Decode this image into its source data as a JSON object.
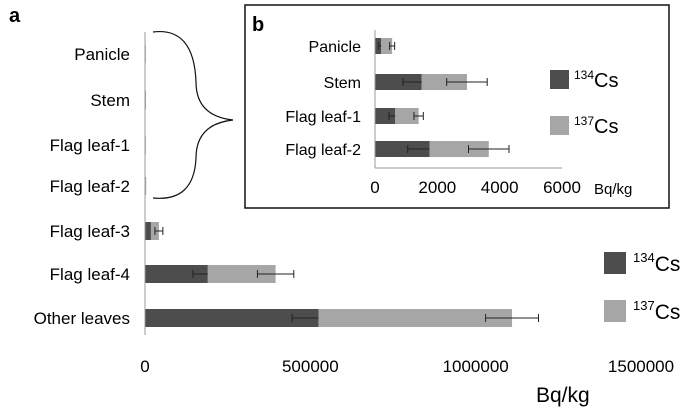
{
  "chart_data": [
    {
      "panel": "a",
      "type": "bar",
      "stacked": true,
      "orientation": "horizontal",
      "categories": [
        "Panicle",
        "Stem",
        "Flag leaf-1",
        "Flag leaf-2",
        "Flag leaf-3",
        "Flag leaf-4",
        "Other leaves"
      ],
      "series": [
        {
          "name": "134Cs",
          "label_mass": "134",
          "label_symbol": "Cs",
          "color": "#4d4d4d",
          "values": [
            500,
            1300,
            600,
            1600,
            18000,
            190000,
            525000
          ],
          "errors": [
            null,
            null,
            null,
            null,
            null,
            45000,
            80000
          ]
        },
        {
          "name": "137Cs",
          "label_mass": "137",
          "label_symbol": "Cs",
          "color": "#a6a6a6",
          "values": [
            550,
            1700,
            700,
            2100,
            24000,
            205000,
            585000
          ],
          "errors": [
            null,
            null,
            null,
            null,
            12000,
            55000,
            80000
          ]
        }
      ],
      "xlim": [
        0,
        1500000
      ],
      "xticks": [
        "0",
        "500000",
        "1000000",
        "1500000"
      ],
      "xlabel": "Bq/kg",
      "legend_position": "right"
    },
    {
      "panel": "b",
      "type": "bar",
      "stacked": true,
      "orientation": "horizontal",
      "categories": [
        "Panicle",
        "Stem",
        "Flag leaf-1",
        "Flag leaf-2"
      ],
      "series": [
        {
          "name": "134Cs",
          "label_mass": "134",
          "label_symbol": "Cs",
          "color": "#4d4d4d",
          "values": [
            200,
            1500,
            650,
            1750
          ],
          "errors": [
            80,
            600,
            200,
            700
          ]
        },
        {
          "name": "137Cs",
          "label_mass": "137",
          "label_symbol": "Cs",
          "color": "#a6a6a6",
          "values": [
            350,
            1450,
            750,
            1900
          ],
          "errors": [
            80,
            650,
            150,
            650
          ]
        }
      ],
      "xlim": [
        0,
        6000
      ],
      "xticks": [
        "0",
        "2000",
        "4000",
        "6000"
      ],
      "xlabel": "Bq/kg",
      "legend_position": "right"
    }
  ]
}
